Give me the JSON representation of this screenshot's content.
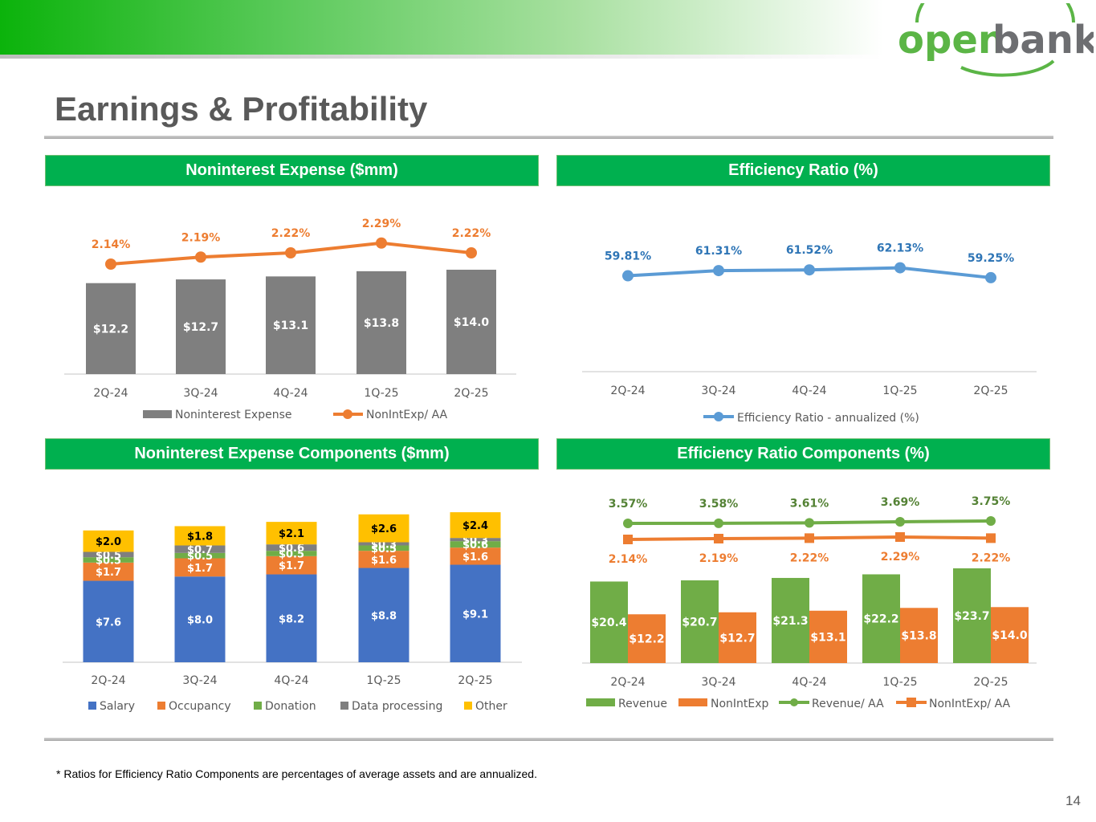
{
  "page": {
    "title": "Earnings & Profitability",
    "page_number": "14",
    "footnote": "* Ratios for Efficiency Ratio Components are percentages of average assets and are annualized."
  },
  "logo": {
    "part1": "open",
    "part2": "bank",
    "colors": {
      "green": "#5bb546",
      "gray": "#6d6e71"
    }
  },
  "colors": {
    "gray_bar": "#7f7f7f",
    "orange": "#ed7d31",
    "blue": "#4472c4",
    "line_blue": "#5b9bd5",
    "green": "#70ad47",
    "yellow": "#ffc000",
    "darkgray": "#7f7f7f",
    "header_green": "#00b04f"
  },
  "panels": {
    "nonint_expense": {
      "header": "Noninterest Expense ($mm)"
    },
    "efficiency": {
      "header": "Efficiency Ratio (%)"
    },
    "components": {
      "header": "Noninterest Expense Components ($mm)"
    },
    "eff_components": {
      "header": "Efficiency Ratio Components (%)"
    }
  },
  "chart_data": [
    {
      "id": "nonint",
      "type": "bar",
      "title": "Noninterest Expense ($mm)",
      "categories": [
        "2Q-24",
        "3Q-24",
        "4Q-24",
        "1Q-25",
        "2Q-25"
      ],
      "series": [
        {
          "name": "Noninterest Expense",
          "kind": "bar",
          "values": [
            12.2,
            12.7,
            13.1,
            13.8,
            14.0
          ],
          "labels": [
            "$12.2",
            "$12.7",
            "$13.1",
            "$13.8",
            "$14.0"
          ]
        },
        {
          "name": "NonIntExp/ AA",
          "kind": "line",
          "values": [
            2.14,
            2.19,
            2.22,
            2.29,
            2.22
          ],
          "labels": [
            "2.14%",
            "2.19%",
            "2.22%",
            "2.29%",
            "2.22%"
          ]
        }
      ]
    },
    {
      "id": "eff",
      "type": "line",
      "title": "Efficiency Ratio (%)",
      "categories": [
        "2Q-24",
        "3Q-24",
        "4Q-24",
        "1Q-25",
        "2Q-25"
      ],
      "series": [
        {
          "name": "Efficiency Ratio - annualized (%)",
          "values": [
            59.81,
            61.31,
            61.52,
            62.13,
            59.25
          ],
          "labels": [
            "59.81%",
            "61.31%",
            "61.52%",
            "62.13%",
            "59.25%"
          ]
        }
      ]
    },
    {
      "id": "comp",
      "type": "bar",
      "stacked": true,
      "title": "Noninterest Expense Components ($mm)",
      "categories": [
        "2Q-24",
        "3Q-24",
        "4Q-24",
        "1Q-25",
        "2Q-25"
      ],
      "series": [
        {
          "name": "Salary",
          "values": [
            7.6,
            8.0,
            8.2,
            8.8,
            9.1
          ],
          "labels": [
            "$7.6",
            "$8.0",
            "$8.2",
            "$8.8",
            "$9.1"
          ]
        },
        {
          "name": "Occupancy",
          "values": [
            1.7,
            1.7,
            1.7,
            1.6,
            1.6
          ],
          "labels": [
            "$1.7",
            "$1.7",
            "$1.7",
            "$1.6",
            "$1.6"
          ]
        },
        {
          "name": "Donation",
          "values": [
            0.5,
            0.5,
            0.5,
            0.5,
            0.6
          ],
          "labels": [
            "$0.5",
            "$0.5",
            "$0.5",
            "$0.5",
            "$0.6"
          ]
        },
        {
          "name": "Data processing",
          "values": [
            0.5,
            0.7,
            0.6,
            0.3,
            0.3
          ],
          "labels": [
            "$0.5",
            "$0.7",
            "$0.6",
            "$0.3",
            "$0.3"
          ]
        },
        {
          "name": "Other",
          "values": [
            2.0,
            1.8,
            2.1,
            2.6,
            2.4
          ],
          "labels": [
            "$2.0",
            "$1.8",
            "$2.1",
            "$2.6",
            "$2.4"
          ]
        }
      ]
    },
    {
      "id": "effcomp",
      "type": "bar",
      "title": "Efficiency Ratio Components (%)",
      "categories": [
        "2Q-24",
        "3Q-24",
        "4Q-24",
        "1Q-25",
        "2Q-25"
      ],
      "series": [
        {
          "name": "Revenue",
          "kind": "bar",
          "values": [
            20.4,
            20.7,
            21.3,
            22.2,
            23.7
          ],
          "labels": [
            "$20.4",
            "$20.7",
            "$21.3",
            "$22.2",
            "$23.7"
          ]
        },
        {
          "name": "NonIntExp",
          "kind": "bar",
          "values": [
            12.2,
            12.7,
            13.1,
            13.8,
            14.0
          ],
          "labels": [
            "$12.2",
            "$12.7",
            "$13.1",
            "$13.8",
            "$14.0"
          ]
        },
        {
          "name": "Revenue/ AA",
          "kind": "line",
          "values": [
            3.57,
            3.58,
            3.61,
            3.69,
            3.75
          ],
          "labels": [
            "3.57%",
            "3.58%",
            "3.61%",
            "3.69%",
            "3.75%"
          ]
        },
        {
          "name": "NonIntExp/ AA",
          "kind": "line",
          "values": [
            2.14,
            2.19,
            2.22,
            2.29,
            2.22
          ],
          "labels": [
            "2.14%",
            "2.19%",
            "2.22%",
            "2.29%",
            "2.22%"
          ]
        }
      ]
    }
  ]
}
